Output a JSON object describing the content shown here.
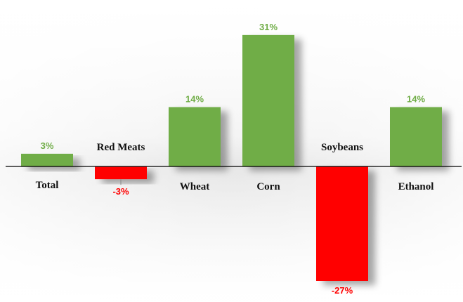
{
  "chart_data": {
    "type": "bar",
    "categories": [
      "Total",
      "Red Meats",
      "Wheat",
      "Corn",
      "Soybeans",
      "Ethanol"
    ],
    "values": [
      3,
      -3,
      14,
      31,
      -27,
      14
    ],
    "value_labels": [
      "3%",
      "-3%",
      "14%",
      "31%",
      "-27%",
      "14%"
    ],
    "unit": "%",
    "ylim": [
      -27,
      31
    ],
    "grid": false,
    "legend": "none",
    "colors": {
      "positive": "#70ad47",
      "negative": "#ff0000",
      "axis": "#000000"
    }
  }
}
